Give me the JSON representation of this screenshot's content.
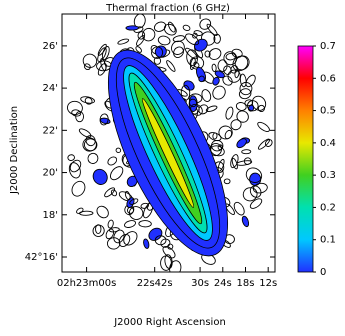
{
  "chart_data": {
    "type": "image",
    "title": "Thermal fraction (6 GHz)",
    "x_label": "J2000 Right Ascension",
    "y_label": "J2000 Declination",
    "xlim": [
      66.5,
      10.2
    ],
    "xticks": [
      {
        "value": 60,
        "label": "02h23m00s"
      },
      {
        "value": 42,
        "label": "22s42s"
      },
      {
        "value": 30,
        "label": "30s"
      },
      {
        "value": 24,
        "label": "24s"
      },
      {
        "value": 18,
        "label": "18s"
      },
      {
        "value": 12,
        "label": "12s"
      }
    ],
    "ylim": [
      15.29,
      27.51
    ],
    "yticks": [
      {
        "value": 16,
        "label": "42°16'"
      },
      {
        "value": 18,
        "label": "18'"
      },
      {
        "value": 20,
        "label": "20'"
      },
      {
        "value": 22,
        "label": "22'"
      },
      {
        "value": 24,
        "label": "24'"
      },
      {
        "value": 26,
        "label": "26'"
      }
    ],
    "colorbar_lim": [
      0,
      0.7
    ],
    "colorbar_ticks": [
      0,
      0.1,
      0.2,
      0.3,
      0.4,
      0.5,
      0.6,
      0.7
    ],
    "colormap": [
      "#2030ff",
      "#00c8ff",
      "#00e0b0",
      "#40d020",
      "#e8e800",
      "#ff8000",
      "#ff0000",
      "#ff00ff"
    ]
  }
}
